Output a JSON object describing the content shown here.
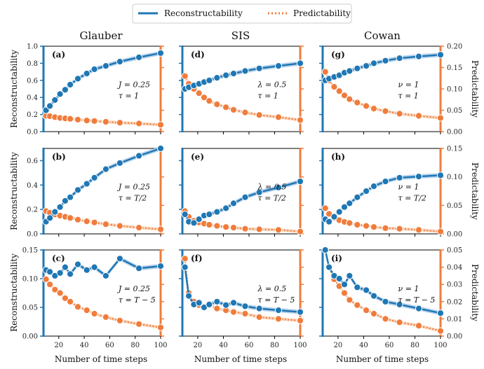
{
  "legend": {
    "series_a": "Reconstructability",
    "series_b": "Predictability"
  },
  "colors": {
    "reconstructability": "#1f77b4",
    "predictability": "#f07c3c",
    "band_blue": "#a9c8e6",
    "band_orange": "#f9c9a8"
  },
  "columns": [
    "Glauber",
    "SIS",
    "Cowan"
  ],
  "axes": {
    "xlabel": "Number of time steps",
    "left_ylabel": "Reconstructability",
    "right_ylabel": "Predictability",
    "x_range": [
      8,
      100
    ],
    "x_ticks": [
      "20",
      "40",
      "60",
      "80",
      "100"
    ],
    "rows": [
      {
        "left_ticks": [
          "0.0",
          "0.2",
          "0.4",
          "0.6",
          "0.8",
          "1.0"
        ],
        "right_ticks": [
          "0.00",
          "0.05",
          "0.10",
          "0.15",
          "0.20"
        ]
      },
      {
        "left_ticks": [
          "0.0",
          "0.2",
          "0.4",
          "0.6"
        ],
        "right_ticks": [
          "0.00",
          "0.05",
          "0.10",
          "0.15"
        ]
      },
      {
        "left_ticks": [
          "0.00",
          "0.05",
          "0.10",
          "0.15"
        ],
        "right_ticks": [
          "0.00",
          "0.01",
          "0.02",
          "0.03",
          "0.04",
          "0.05"
        ]
      }
    ]
  },
  "chart_data": {
    "type": "line",
    "x": [
      10,
      13,
      17,
      21,
      25,
      29,
      35,
      42,
      48,
      57,
      68,
      83,
      100
    ],
    "row_left_ylim": [
      [
        0,
        1.0
      ],
      [
        0,
        0.7
      ],
      [
        0,
        0.15
      ]
    ],
    "row_right_ylim": [
      [
        0,
        0.2
      ],
      [
        0,
        0.15
      ],
      [
        0,
        0.05
      ]
    ],
    "panels": [
      {
        "label": "(a)",
        "row": 0,
        "col": 0,
        "param1": "J = 0.25",
        "param2": "τ = 1",
        "reconstructability": [
          0.25,
          0.3,
          0.37,
          0.44,
          0.49,
          0.55,
          0.62,
          0.68,
          0.73,
          0.77,
          0.82,
          0.87,
          0.92
        ],
        "predictability": [
          0.037,
          0.036,
          0.034,
          0.032,
          0.031,
          0.03,
          0.028,
          0.026,
          0.025,
          0.023,
          0.021,
          0.019,
          0.016
        ]
      },
      {
        "label": "(d)",
        "row": 0,
        "col": 1,
        "param1": "λ = 0.5",
        "param2": "τ = 1",
        "reconstructability": [
          0.5,
          0.52,
          0.54,
          0.56,
          0.58,
          0.6,
          0.63,
          0.66,
          0.68,
          0.71,
          0.74,
          0.77,
          0.8
        ],
        "predictability": [
          0.13,
          0.112,
          0.1,
          0.09,
          0.08,
          0.072,
          0.064,
          0.057,
          0.051,
          0.045,
          0.039,
          0.034,
          0.027
        ]
      },
      {
        "label": "(g)",
        "row": 0,
        "col": 2,
        "param1": "ν = 1",
        "param2": "τ = 1",
        "reconstructability": [
          0.6,
          0.62,
          0.64,
          0.66,
          0.69,
          0.71,
          0.74,
          0.77,
          0.8,
          0.83,
          0.86,
          0.88,
          0.9
        ],
        "predictability": [
          0.14,
          0.12,
          0.105,
          0.095,
          0.085,
          0.076,
          0.068,
          0.06,
          0.054,
          0.048,
          0.042,
          0.037,
          0.032
        ]
      },
      {
        "label": "(b)",
        "row": 1,
        "col": 0,
        "param1": "J = 0.25",
        "param2": "τ = T/2",
        "reconstructability": [
          0.1,
          0.13,
          0.18,
          0.22,
          0.27,
          0.3,
          0.36,
          0.41,
          0.46,
          0.53,
          0.58,
          0.64,
          0.7
        ],
        "predictability": [
          0.04,
          0.037,
          0.034,
          0.032,
          0.03,
          0.028,
          0.025,
          0.022,
          0.02,
          0.017,
          0.014,
          0.011,
          0.008
        ]
      },
      {
        "label": "(e)",
        "row": 1,
        "col": 1,
        "param1": "λ = 0.5",
        "param2": "τ = T/2",
        "reconstructability": [
          0.16,
          0.1,
          0.09,
          0.12,
          0.15,
          0.16,
          0.18,
          0.21,
          0.25,
          0.3,
          0.34,
          0.38,
          0.43
        ],
        "predictability": [
          0.04,
          0.03,
          0.023,
          0.02,
          0.018,
          0.016,
          0.014,
          0.012,
          0.011,
          0.009,
          0.008,
          0.007,
          0.004
        ]
      },
      {
        "label": "(h)",
        "row": 1,
        "col": 2,
        "param1": "ν = 1",
        "param2": "τ = T/2",
        "reconstructability": [
          0.12,
          0.1,
          0.14,
          0.18,
          0.22,
          0.25,
          0.3,
          0.35,
          0.39,
          0.43,
          0.46,
          0.47,
          0.48
        ],
        "predictability": [
          0.045,
          0.035,
          0.028,
          0.024,
          0.021,
          0.019,
          0.016,
          0.014,
          0.012,
          0.01,
          0.009,
          0.007,
          0.004
        ]
      },
      {
        "label": "(c)",
        "row": 2,
        "col": 0,
        "param1": "J = 0.25",
        "param2": "τ = T − 5",
        "reconstructability": [
          0.115,
          0.112,
          0.105,
          0.11,
          0.12,
          0.108,
          0.125,
          0.115,
          0.12,
          0.105,
          0.135,
          0.118,
          0.122
        ],
        "predictability": [
          0.033,
          0.03,
          0.027,
          0.025,
          0.022,
          0.02,
          0.017,
          0.015,
          0.013,
          0.011,
          0.009,
          0.007,
          0.005
        ]
      },
      {
        "label": "(f)",
        "row": 2,
        "col": 1,
        "param1": "λ = 0.5",
        "param2": "τ = T − 5",
        "reconstructability": [
          0.12,
          0.07,
          0.055,
          0.058,
          0.05,
          0.055,
          0.06,
          0.054,
          0.058,
          0.052,
          0.048,
          0.045,
          0.042
        ],
        "predictability": [
          0.045,
          0.025,
          0.02,
          0.018,
          0.017,
          0.018,
          0.016,
          0.015,
          0.014,
          0.013,
          0.011,
          0.01,
          0.009
        ]
      },
      {
        "label": "(i)",
        "row": 2,
        "col": 2,
        "param1": "ν = 1",
        "param2": "τ = T − 5",
        "reconstructability": [
          0.15,
          0.12,
          0.105,
          0.1,
          0.09,
          0.105,
          0.085,
          0.08,
          0.07,
          0.06,
          0.055,
          0.048,
          0.04
        ],
        "predictability": [
          0.05,
          0.04,
          0.033,
          0.029,
          0.025,
          0.021,
          0.018,
          0.015,
          0.013,
          0.01,
          0.008,
          0.006,
          0.003
        ]
      }
    ]
  }
}
